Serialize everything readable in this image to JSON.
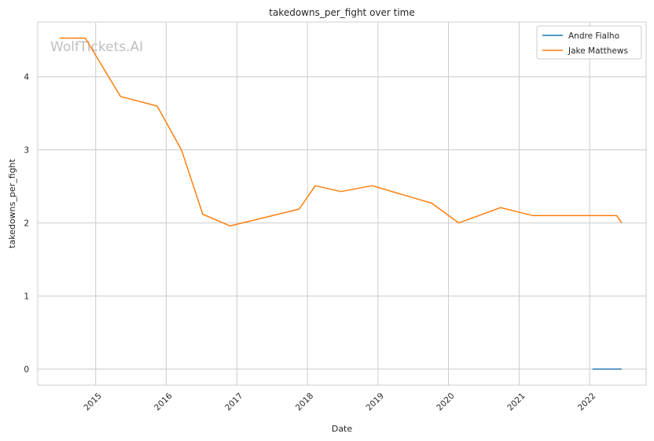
{
  "chart_data": {
    "type": "line",
    "title": "takedowns_per_fight over time",
    "xlabel": "Date",
    "ylabel": "takedowns_per_fight",
    "watermark": "WolfTickets.AI",
    "x_ticks": [
      "2015",
      "2016",
      "2017",
      "2018",
      "2019",
      "2020",
      "2021",
      "2022"
    ],
    "y_ticks": [
      0,
      1,
      2,
      3,
      4
    ],
    "xlim": [
      "2014-03-07",
      "2022-10-20"
    ],
    "ylim": [
      -0.22,
      4.75
    ],
    "grid": true,
    "legend_position": "top-right",
    "series": [
      {
        "name": "Andre Fialho",
        "color": "#1f77b4",
        "points": [
          {
            "x": "2022-01-15",
            "y": 0
          },
          {
            "x": "2022-06-15",
            "y": 0
          }
        ]
      },
      {
        "name": "Jake Matthews",
        "color": "#ff7f0e",
        "points": [
          {
            "x": "2014-06-28",
            "y": 4.53
          },
          {
            "x": "2014-11-08",
            "y": 4.53
          },
          {
            "x": "2015-05-10",
            "y": 3.73
          },
          {
            "x": "2015-11-15",
            "y": 3.6
          },
          {
            "x": "2016-03-20",
            "y": 3.0
          },
          {
            "x": "2016-07-08",
            "y": 2.12
          },
          {
            "x": "2016-11-27",
            "y": 1.96
          },
          {
            "x": "2017-11-19",
            "y": 2.19
          },
          {
            "x": "2018-02-11",
            "y": 2.51
          },
          {
            "x": "2018-06-23",
            "y": 2.43
          },
          {
            "x": "2018-12-02",
            "y": 2.51
          },
          {
            "x": "2019-10-06",
            "y": 2.27
          },
          {
            "x": "2020-02-23",
            "y": 2.0
          },
          {
            "x": "2020-09-27",
            "y": 2.21
          },
          {
            "x": "2021-03-13",
            "y": 2.1
          },
          {
            "x": "2022-05-21",
            "y": 2.1
          },
          {
            "x": "2022-06-15",
            "y": 2.0
          }
        ]
      }
    ]
  }
}
